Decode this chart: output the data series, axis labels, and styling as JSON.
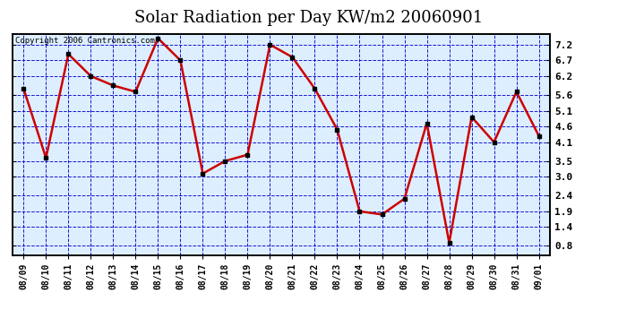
{
  "title": "Solar Radiation per Day KW/m2 20060901",
  "copyright": "Copyright 2006 Cantronics.com",
  "x_labels": [
    "08/09",
    "08/10",
    "08/11",
    "08/12",
    "08/13",
    "08/14",
    "08/15",
    "08/16",
    "08/17",
    "08/18",
    "08/19",
    "08/20",
    "08/21",
    "08/22",
    "08/23",
    "08/24",
    "08/25",
    "08/26",
    "08/27",
    "08/28",
    "08/29",
    "08/30",
    "08/31",
    "09/01"
  ],
  "y_values": [
    5.8,
    3.6,
    6.9,
    6.2,
    5.9,
    5.7,
    7.4,
    6.7,
    3.1,
    3.5,
    3.7,
    7.2,
    6.8,
    5.8,
    4.5,
    1.9,
    1.8,
    2.3,
    4.7,
    0.9,
    4.9,
    4.1,
    5.7,
    4.3
  ],
  "line_color": "#cc0000",
  "marker_color": "#000000",
  "fig_bg_color": "#ffffff",
  "plot_bg_color": "#ddeeff",
  "grid_color": "#0000cc",
  "title_fontsize": 13,
  "ylim": [
    0.5,
    7.55
  ],
  "yticks": [
    0.8,
    1.4,
    1.9,
    2.4,
    3.0,
    3.5,
    4.1,
    4.6,
    5.1,
    5.6,
    6.2,
    6.7,
    7.2
  ]
}
